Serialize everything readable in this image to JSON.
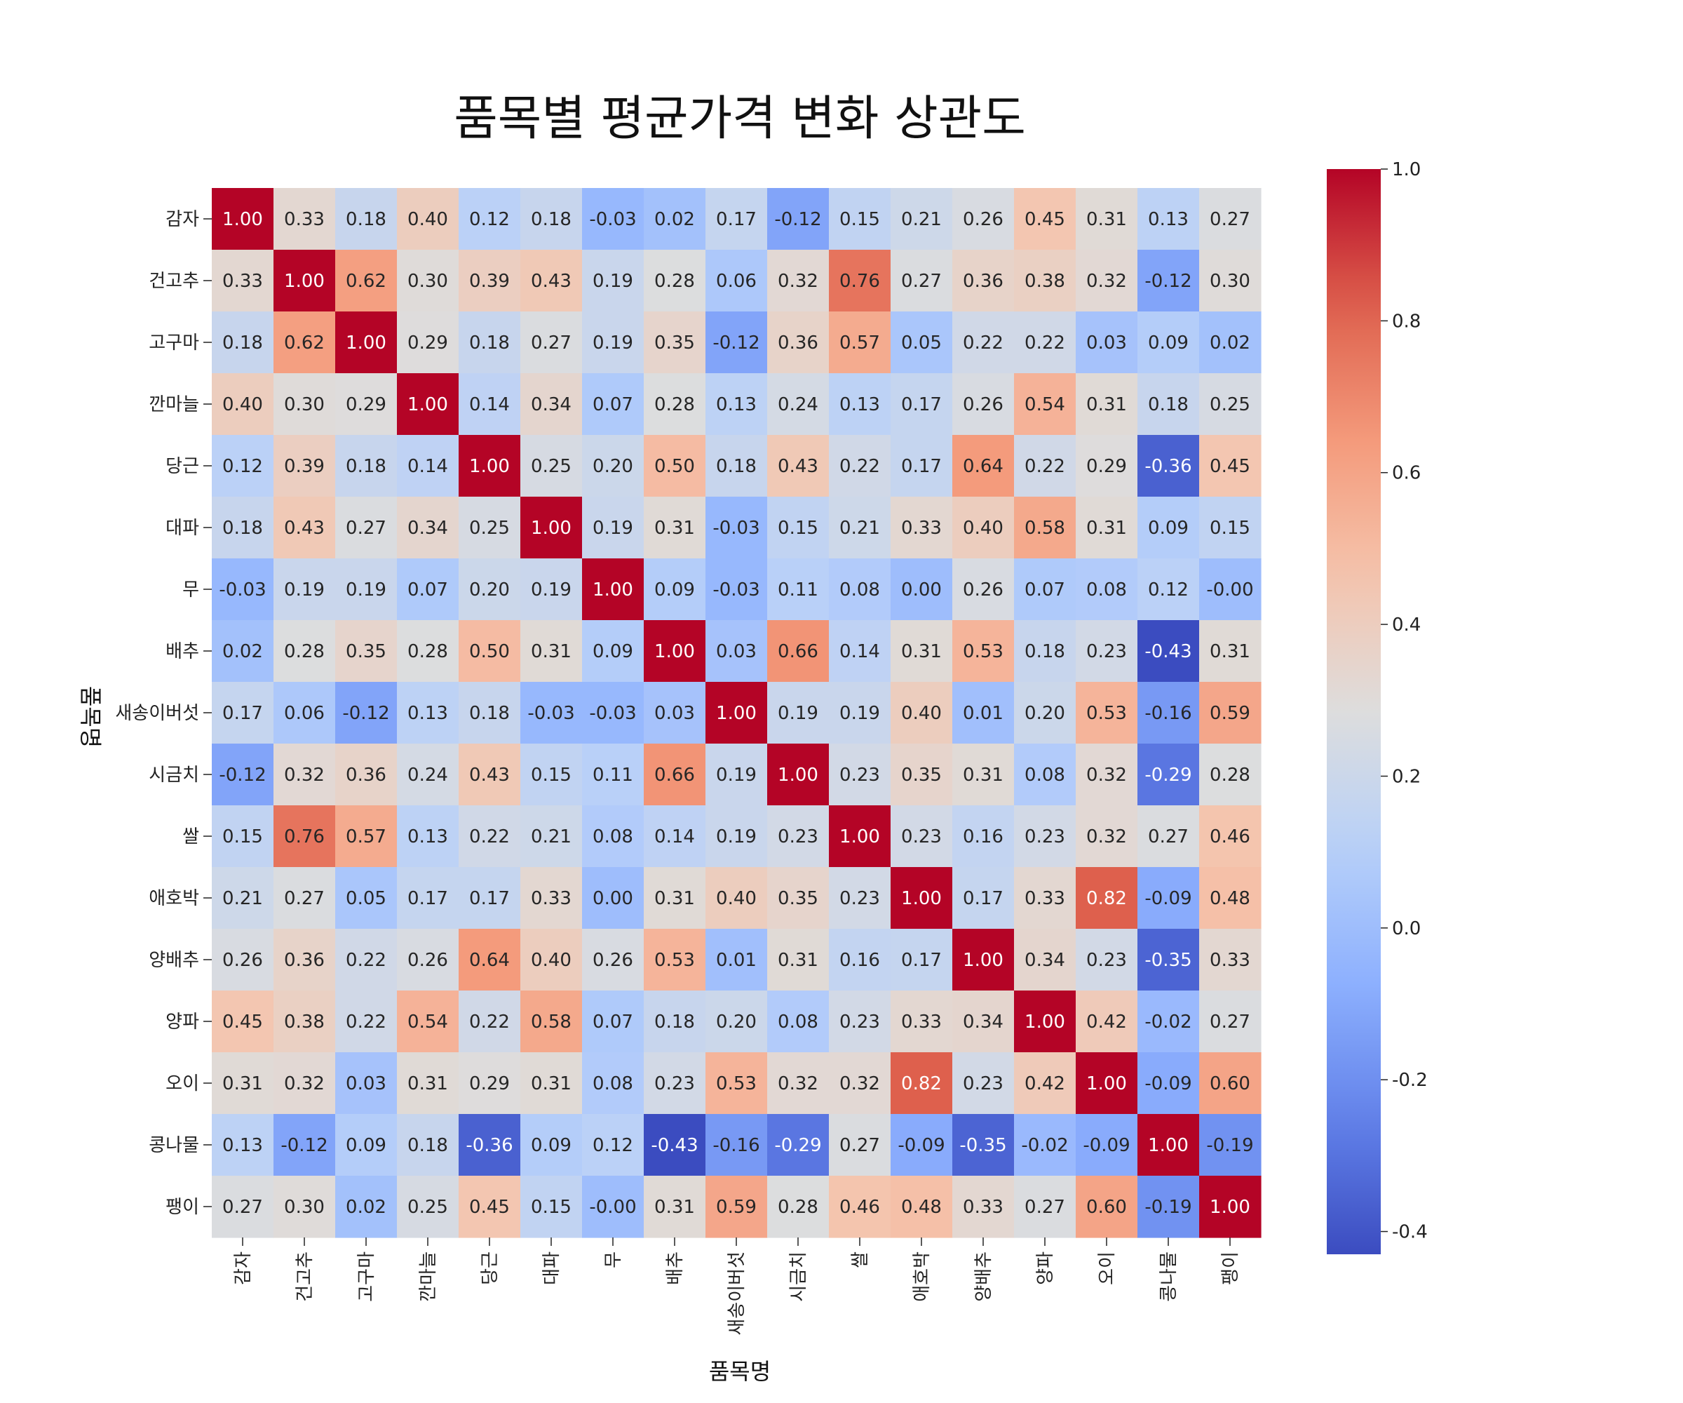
{
  "chart_data": {
    "type": "heatmap",
    "title": "품목별 평균가격 변화 상관도",
    "xlabel": "품목명",
    "ylabel": "품목명",
    "categories": [
      "감자",
      "건고추",
      "고구마",
      "깐마늘",
      "당근",
      "대파",
      "무",
      "배추",
      "새송이버섯",
      "시금치",
      "쌀",
      "애호박",
      "양배추",
      "양파",
      "오이",
      "콩나물",
      "팽이"
    ],
    "values": [
      [
        1.0,
        0.33,
        0.18,
        0.4,
        0.12,
        0.18,
        -0.03,
        0.02,
        0.17,
        -0.12,
        0.15,
        0.21,
        0.26,
        0.45,
        0.31,
        0.13,
        0.27
      ],
      [
        0.33,
        1.0,
        0.62,
        0.3,
        0.39,
        0.43,
        0.19,
        0.28,
        0.06,
        0.32,
        0.76,
        0.27,
        0.36,
        0.38,
        0.32,
        -0.12,
        0.3
      ],
      [
        0.18,
        0.62,
        1.0,
        0.29,
        0.18,
        0.27,
        0.19,
        0.35,
        -0.12,
        0.36,
        0.57,
        0.05,
        0.22,
        0.22,
        0.03,
        0.09,
        0.02
      ],
      [
        0.4,
        0.3,
        0.29,
        1.0,
        0.14,
        0.34,
        0.07,
        0.28,
        0.13,
        0.24,
        0.13,
        0.17,
        0.26,
        0.54,
        0.31,
        0.18,
        0.25
      ],
      [
        0.12,
        0.39,
        0.18,
        0.14,
        1.0,
        0.25,
        0.2,
        0.5,
        0.18,
        0.43,
        0.22,
        0.17,
        0.64,
        0.22,
        0.29,
        -0.36,
        0.45
      ],
      [
        0.18,
        0.43,
        0.27,
        0.34,
        0.25,
        1.0,
        0.19,
        0.31,
        -0.03,
        0.15,
        0.21,
        0.33,
        0.4,
        0.58,
        0.31,
        0.09,
        0.15
      ],
      [
        -0.03,
        0.19,
        0.19,
        0.07,
        0.2,
        0.19,
        1.0,
        0.09,
        -0.03,
        0.11,
        0.08,
        0.0,
        0.26,
        0.07,
        0.08,
        0.12,
        -0.0
      ],
      [
        0.02,
        0.28,
        0.35,
        0.28,
        0.5,
        0.31,
        0.09,
        1.0,
        0.03,
        0.66,
        0.14,
        0.31,
        0.53,
        0.18,
        0.23,
        -0.43,
        0.31
      ],
      [
        0.17,
        0.06,
        -0.12,
        0.13,
        0.18,
        -0.03,
        -0.03,
        0.03,
        1.0,
        0.19,
        0.19,
        0.4,
        0.01,
        0.2,
        0.53,
        -0.16,
        0.59
      ],
      [
        -0.12,
        0.32,
        0.36,
        0.24,
        0.43,
        0.15,
        0.11,
        0.66,
        0.19,
        1.0,
        0.23,
        0.35,
        0.31,
        0.08,
        0.32,
        -0.29,
        0.28
      ],
      [
        0.15,
        0.76,
        0.57,
        0.13,
        0.22,
        0.21,
        0.08,
        0.14,
        0.19,
        0.23,
        1.0,
        0.23,
        0.16,
        0.23,
        0.32,
        0.27,
        0.46
      ],
      [
        0.21,
        0.27,
        0.05,
        0.17,
        0.17,
        0.33,
        0.0,
        0.31,
        0.4,
        0.35,
        0.23,
        1.0,
        0.17,
        0.33,
        0.82,
        -0.09,
        0.48
      ],
      [
        0.26,
        0.36,
        0.22,
        0.26,
        0.64,
        0.4,
        0.26,
        0.53,
        0.01,
        0.31,
        0.16,
        0.17,
        1.0,
        0.34,
        0.23,
        -0.35,
        0.33
      ],
      [
        0.45,
        0.38,
        0.22,
        0.54,
        0.22,
        0.58,
        0.07,
        0.18,
        0.2,
        0.08,
        0.23,
        0.33,
        0.34,
        1.0,
        0.42,
        -0.02,
        0.27
      ],
      [
        0.31,
        0.32,
        0.03,
        0.31,
        0.29,
        0.31,
        0.08,
        0.23,
        0.53,
        0.32,
        0.32,
        0.82,
        0.23,
        0.42,
        1.0,
        -0.09,
        0.6
      ],
      [
        0.13,
        -0.12,
        0.09,
        0.18,
        -0.36,
        0.09,
        0.12,
        -0.43,
        -0.16,
        -0.29,
        0.27,
        -0.09,
        -0.35,
        -0.02,
        -0.09,
        1.0,
        -0.19
      ],
      [
        0.27,
        0.3,
        0.02,
        0.25,
        0.45,
        0.15,
        -0.0,
        0.31,
        0.59,
        0.28,
        0.46,
        0.48,
        0.33,
        0.27,
        0.6,
        -0.19,
        1.0
      ]
    ],
    "value_labels": [
      [
        "1.00",
        "0.33",
        "0.18",
        "0.40",
        "0.12",
        "0.18",
        "-0.03",
        "0.02",
        "0.17",
        "-0.12",
        "0.15",
        "0.21",
        "0.26",
        "0.45",
        "0.31",
        "0.13",
        "0.27"
      ],
      [
        "0.33",
        "1.00",
        "0.62",
        "0.30",
        "0.39",
        "0.43",
        "0.19",
        "0.28",
        "0.06",
        "0.32",
        "0.76",
        "0.27",
        "0.36",
        "0.38",
        "0.32",
        "-0.12",
        "0.30"
      ],
      [
        "0.18",
        "0.62",
        "1.00",
        "0.29",
        "0.18",
        "0.27",
        "0.19",
        "0.35",
        "-0.12",
        "0.36",
        "0.57",
        "0.05",
        "0.22",
        "0.22",
        "0.03",
        "0.09",
        "0.02"
      ],
      [
        "0.40",
        "0.30",
        "0.29",
        "1.00",
        "0.14",
        "0.34",
        "0.07",
        "0.28",
        "0.13",
        "0.24",
        "0.13",
        "0.17",
        "0.26",
        "0.54",
        "0.31",
        "0.18",
        "0.25"
      ],
      [
        "0.12",
        "0.39",
        "0.18",
        "0.14",
        "1.00",
        "0.25",
        "0.20",
        "0.50",
        "0.18",
        "0.43",
        "0.22",
        "0.17",
        "0.64",
        "0.22",
        "0.29",
        "-0.36",
        "0.45"
      ],
      [
        "0.18",
        "0.43",
        "0.27",
        "0.34",
        "0.25",
        "1.00",
        "0.19",
        "0.31",
        "-0.03",
        "0.15",
        "0.21",
        "0.33",
        "0.40",
        "0.58",
        "0.31",
        "0.09",
        "0.15"
      ],
      [
        "-0.03",
        "0.19",
        "0.19",
        "0.07",
        "0.20",
        "0.19",
        "1.00",
        "0.09",
        "-0.03",
        "0.11",
        "0.08",
        "0.00",
        "0.26",
        "0.07",
        "0.08",
        "0.12",
        "-0.00"
      ],
      [
        "0.02",
        "0.28",
        "0.35",
        "0.28",
        "0.50",
        "0.31",
        "0.09",
        "1.00",
        "0.03",
        "0.66",
        "0.14",
        "0.31",
        "0.53",
        "0.18",
        "0.23",
        "-0.43",
        "0.31"
      ],
      [
        "0.17",
        "0.06",
        "-0.12",
        "0.13",
        "0.18",
        "-0.03",
        "-0.03",
        "0.03",
        "1.00",
        "0.19",
        "0.19",
        "0.40",
        "0.01",
        "0.20",
        "0.53",
        "-0.16",
        "0.59"
      ],
      [
        "-0.12",
        "0.32",
        "0.36",
        "0.24",
        "0.43",
        "0.15",
        "0.11",
        "0.66",
        "0.19",
        "1.00",
        "0.23",
        "0.35",
        "0.31",
        "0.08",
        "0.32",
        "-0.29",
        "0.28"
      ],
      [
        "0.15",
        "0.76",
        "0.57",
        "0.13",
        "0.22",
        "0.21",
        "0.08",
        "0.14",
        "0.19",
        "0.23",
        "1.00",
        "0.23",
        "0.16",
        "0.23",
        "0.32",
        "0.27",
        "0.46"
      ],
      [
        "0.21",
        "0.27",
        "0.05",
        "0.17",
        "0.17",
        "0.33",
        "0.00",
        "0.31",
        "0.40",
        "0.35",
        "0.23",
        "1.00",
        "0.17",
        "0.33",
        "0.82",
        "-0.09",
        "0.48"
      ],
      [
        "0.26",
        "0.36",
        "0.22",
        "0.26",
        "0.64",
        "0.40",
        "0.26",
        "0.53",
        "0.01",
        "0.31",
        "0.16",
        "0.17",
        "1.00",
        "0.34",
        "0.23",
        "-0.35",
        "0.33"
      ],
      [
        "0.45",
        "0.38",
        "0.22",
        "0.54",
        "0.22",
        "0.58",
        "0.07",
        "0.18",
        "0.20",
        "0.08",
        "0.23",
        "0.33",
        "0.34",
        "1.00",
        "0.42",
        "-0.02",
        "0.27"
      ],
      [
        "0.31",
        "0.32",
        "0.03",
        "0.31",
        "0.29",
        "0.31",
        "0.08",
        "0.23",
        "0.53",
        "0.32",
        "0.32",
        "0.82",
        "0.23",
        "0.42",
        "1.00",
        "-0.09",
        "0.60"
      ],
      [
        "0.13",
        "-0.12",
        "0.09",
        "0.18",
        "-0.36",
        "0.09",
        "0.12",
        "-0.43",
        "-0.16",
        "-0.29",
        "0.27",
        "-0.09",
        "-0.35",
        "-0.02",
        "-0.09",
        "1.00",
        "-0.19"
      ],
      [
        "0.27",
        "0.30",
        "0.02",
        "0.25",
        "0.45",
        "0.15",
        "-0.00",
        "0.31",
        "0.59",
        "0.28",
        "0.46",
        "0.48",
        "0.33",
        "0.27",
        "0.60",
        "-0.19",
        "1.00"
      ]
    ],
    "colorbar": {
      "colormap": "coolwarm",
      "vmin": -0.43,
      "vmax": 1.0,
      "ticks": [
        -0.4,
        -0.2,
        0.0,
        0.2,
        0.4,
        0.6,
        0.8,
        1.0
      ],
      "tick_labels": [
        "-0.4",
        "-0.2",
        "0.0",
        "0.2",
        "0.4",
        "0.6",
        "0.8",
        "1.0"
      ]
    }
  }
}
